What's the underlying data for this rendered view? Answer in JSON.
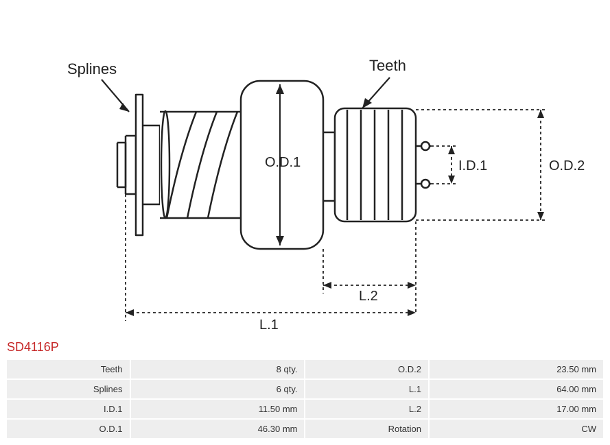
{
  "part_number": "SD4116P",
  "diagram": {
    "labels": {
      "splines": "Splines",
      "teeth": "Teeth",
      "od1": "O.D.1",
      "od2": "O.D.2",
      "id1": "I.D.1",
      "l1": "L.1",
      "l2": "L.2"
    },
    "colors": {
      "stroke": "#222222",
      "fill": "#ffffff",
      "dashed": "#222222",
      "text": "#222222"
    },
    "stroke_width": 2.5,
    "dash_pattern": "4 4"
  },
  "specs": [
    {
      "label1": "Teeth",
      "value1": "8 qty.",
      "label2": "O.D.2",
      "value2": "23.50 mm"
    },
    {
      "label1": "Splines",
      "value1": "6 qty.",
      "label2": "L.1",
      "value2": "64.00 mm"
    },
    {
      "label1": "I.D.1",
      "value1": "11.50 mm",
      "label2": "L.2",
      "value2": "17.00 mm"
    },
    {
      "label1": "O.D.1",
      "value1": "46.30 mm",
      "label2": "Rotation",
      "value2": "CW"
    }
  ],
  "table_style": {
    "row_bg": "#eeeeee",
    "font_size": 13,
    "text_color": "#333333"
  }
}
